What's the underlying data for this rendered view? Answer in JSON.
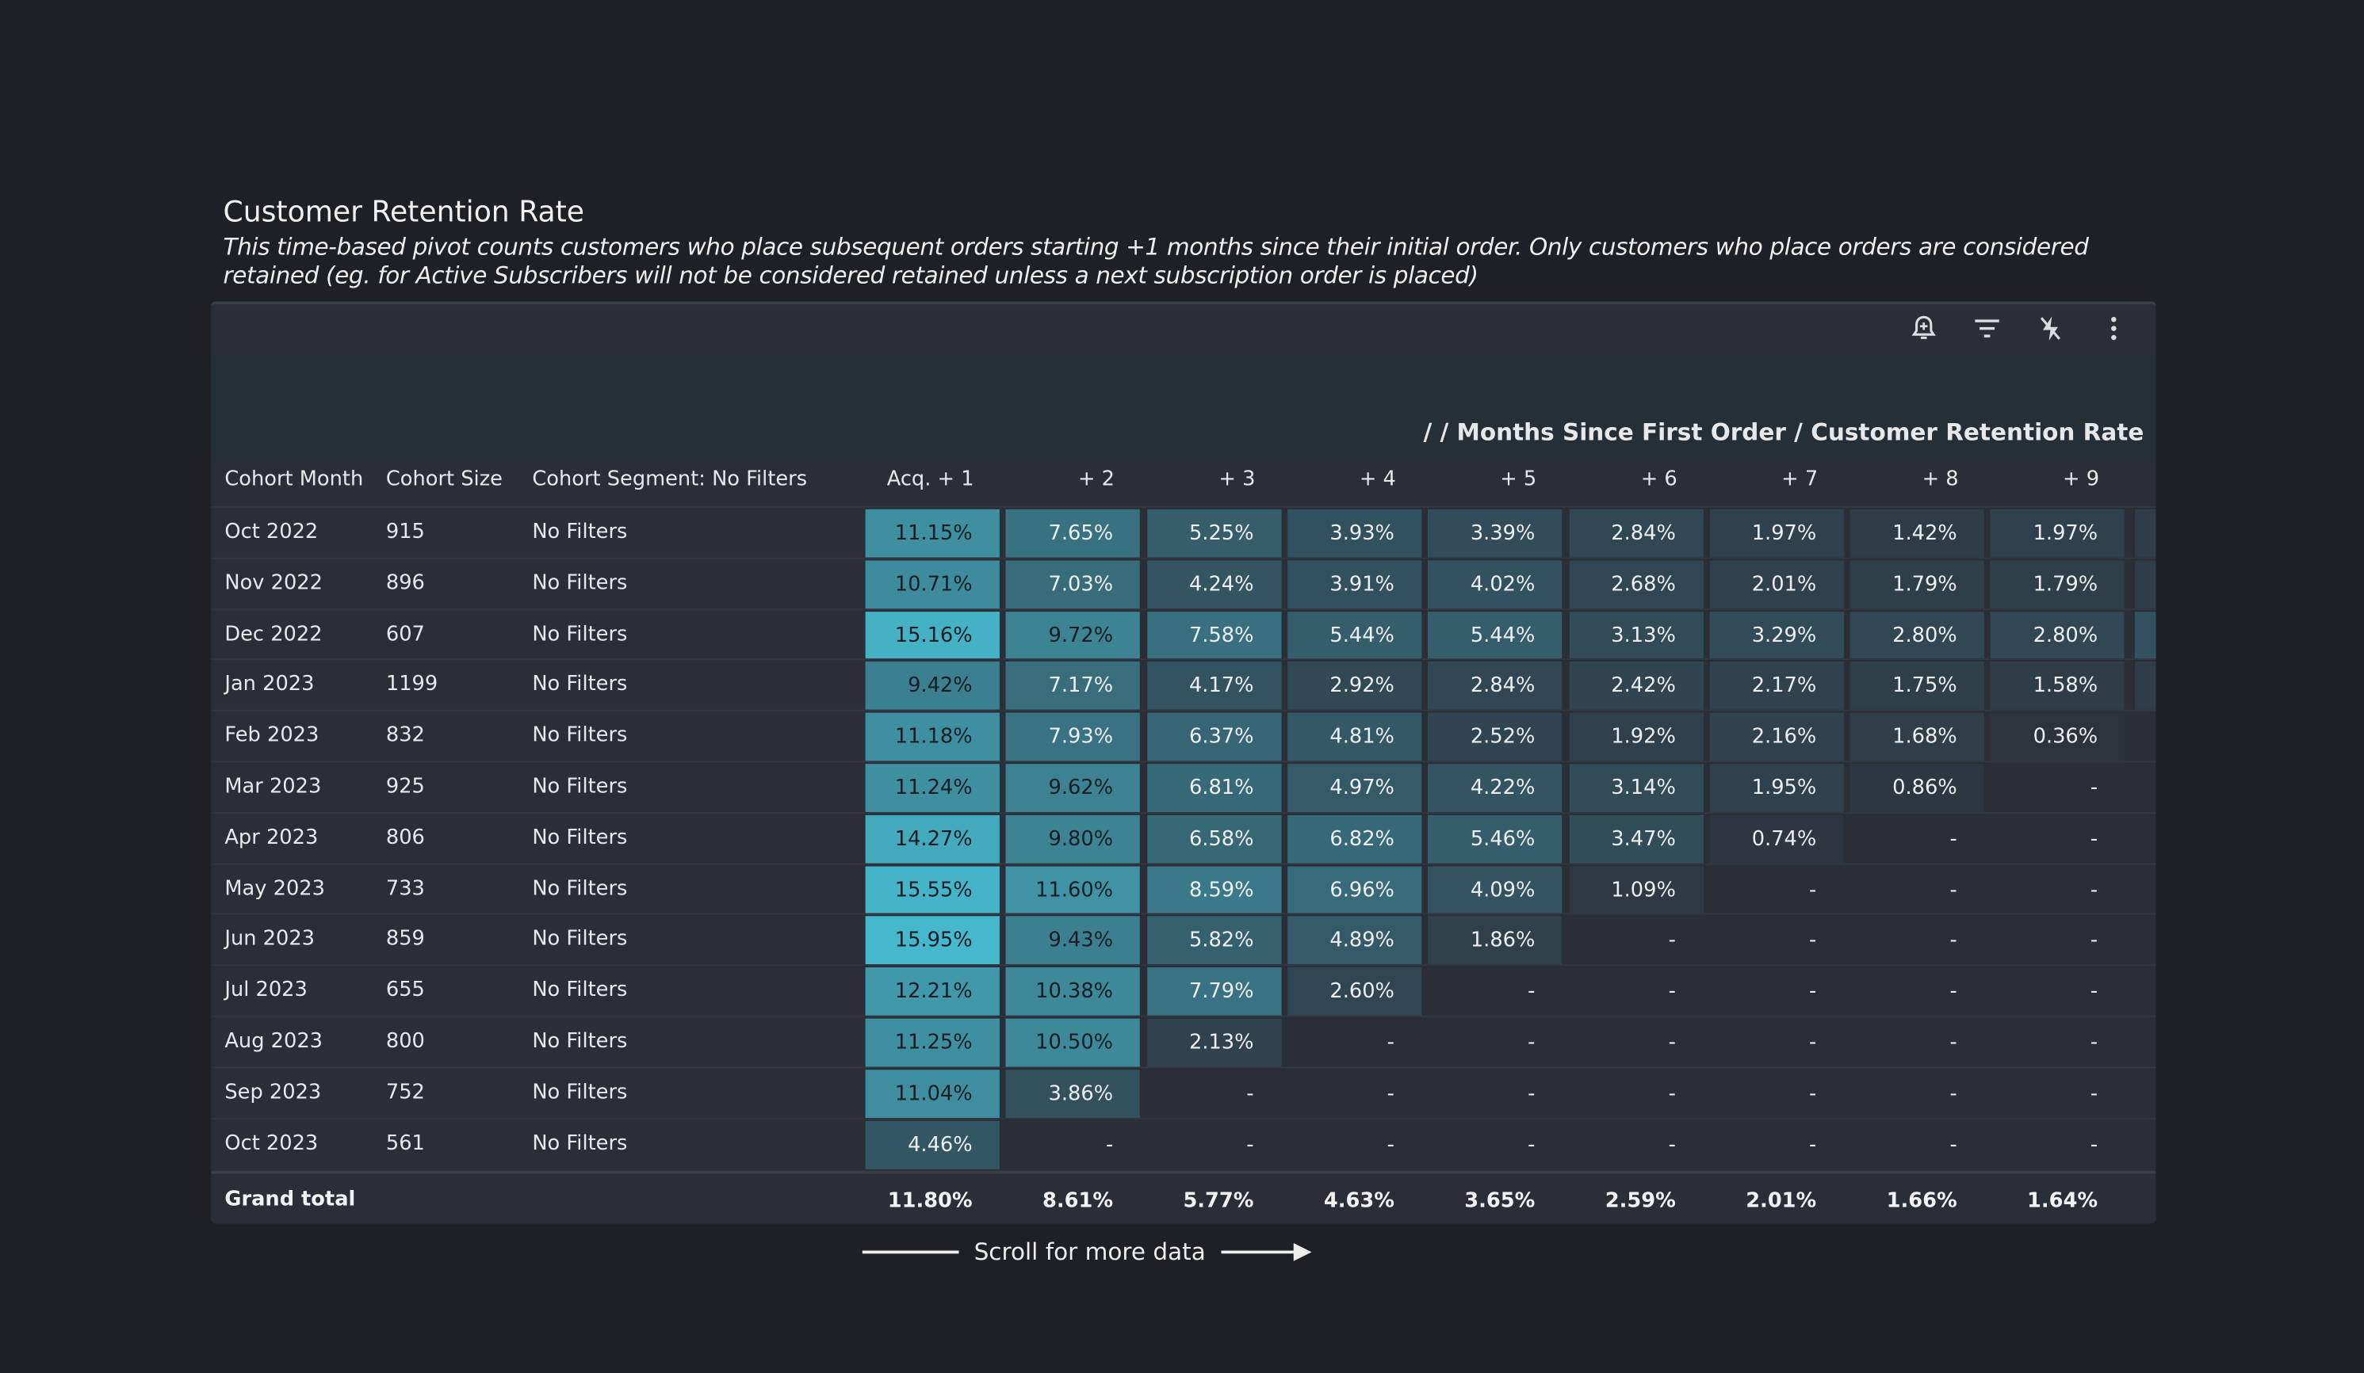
{
  "title": "Customer Retention Rate",
  "description": "This time-based pivot counts customers who place subsequent orders starting +1 months since their initial order. Only customers who place orders are considered retained (eg. for Active Subscribers will not be considered retained unless a next subscription order is placed)",
  "toolbar": {
    "icons": [
      "bell-plus-icon",
      "filter-icon",
      "lightning-off-icon",
      "more-vertical-icon"
    ]
  },
  "breadcrumb": "/ / Months Since First Order / Customer Retention Rate",
  "colors": {
    "low": "#2c303a",
    "high": "#46b8cd",
    "dark_text": "#1a1d22",
    "light_text": "#eeeeee"
  },
  "columns": {
    "cohort_month": "Cohort Month",
    "cohort_size": "Cohort Size",
    "segment": "Cohort Segment: No Filters",
    "periods": [
      "Acq. + 1",
      "+ 2",
      "+ 3",
      "+ 4",
      "+ 5",
      "+ 6",
      "+ 7",
      "+ 8",
      "+ 9"
    ]
  },
  "empty_value": "-",
  "rows": [
    {
      "month": "Oct 2022",
      "size": "915",
      "segment": "No Filters",
      "values": [
        11.15,
        7.65,
        5.25,
        3.93,
        3.39,
        2.84,
        1.97,
        1.42,
        1.97
      ]
    },
    {
      "month": "Nov 2022",
      "size": "896",
      "segment": "No Filters",
      "values": [
        10.71,
        7.03,
        4.24,
        3.91,
        4.02,
        2.68,
        2.01,
        1.79,
        1.79
      ]
    },
    {
      "month": "Dec 2022",
      "size": "607",
      "segment": "No Filters",
      "values": [
        15.16,
        9.72,
        7.58,
        5.44,
        5.44,
        3.13,
        3.29,
        2.8,
        2.8
      ]
    },
    {
      "month": "Jan 2023",
      "size": "1199",
      "segment": "No Filters",
      "values": [
        9.42,
        7.17,
        4.17,
        2.92,
        2.84,
        2.42,
        2.17,
        1.75,
        1.58
      ]
    },
    {
      "month": "Feb 2023",
      "size": "832",
      "segment": "No Filters",
      "values": [
        11.18,
        7.93,
        6.37,
        4.81,
        2.52,
        1.92,
        2.16,
        1.68,
        0.36
      ]
    },
    {
      "month": "Mar 2023",
      "size": "925",
      "segment": "No Filters",
      "values": [
        11.24,
        9.62,
        6.81,
        4.97,
        4.22,
        3.14,
        1.95,
        0.86,
        null
      ]
    },
    {
      "month": "Apr 2023",
      "size": "806",
      "segment": "No Filters",
      "values": [
        14.27,
        9.8,
        6.58,
        6.82,
        5.46,
        3.47,
        0.74,
        null,
        null
      ]
    },
    {
      "month": "May 2023",
      "size": "733",
      "segment": "No Filters",
      "values": [
        15.55,
        11.6,
        8.59,
        6.96,
        4.09,
        1.09,
        null,
        null,
        null
      ]
    },
    {
      "month": "Jun 2023",
      "size": "859",
      "segment": "No Filters",
      "values": [
        15.95,
        9.43,
        5.82,
        4.89,
        1.86,
        null,
        null,
        null,
        null
      ]
    },
    {
      "month": "Jul 2023",
      "size": "655",
      "segment": "No Filters",
      "values": [
        12.21,
        10.38,
        7.79,
        2.6,
        null,
        null,
        null,
        null,
        null
      ]
    },
    {
      "month": "Aug 2023",
      "size": "800",
      "segment": "No Filters",
      "values": [
        11.25,
        10.5,
        2.13,
        null,
        null,
        null,
        null,
        null,
        null
      ]
    },
    {
      "month": "Sep 2023",
      "size": "752",
      "segment": "No Filters",
      "values": [
        11.04,
        3.86,
        null,
        null,
        null,
        null,
        null,
        null,
        null
      ]
    },
    {
      "month": "Oct 2023",
      "size": "561",
      "segment": "No Filters",
      "values": [
        4.46,
        null,
        null,
        null,
        null,
        null,
        null,
        null,
        null
      ]
    }
  ],
  "grand_total": {
    "label": "Grand total",
    "values": [
      "11.80%",
      "8.61%",
      "5.77%",
      "4.63%",
      "3.65%",
      "2.59%",
      "2.01%",
      "1.66%",
      "1.64%"
    ]
  },
  "scroll_hint": "Scroll for more data"
}
